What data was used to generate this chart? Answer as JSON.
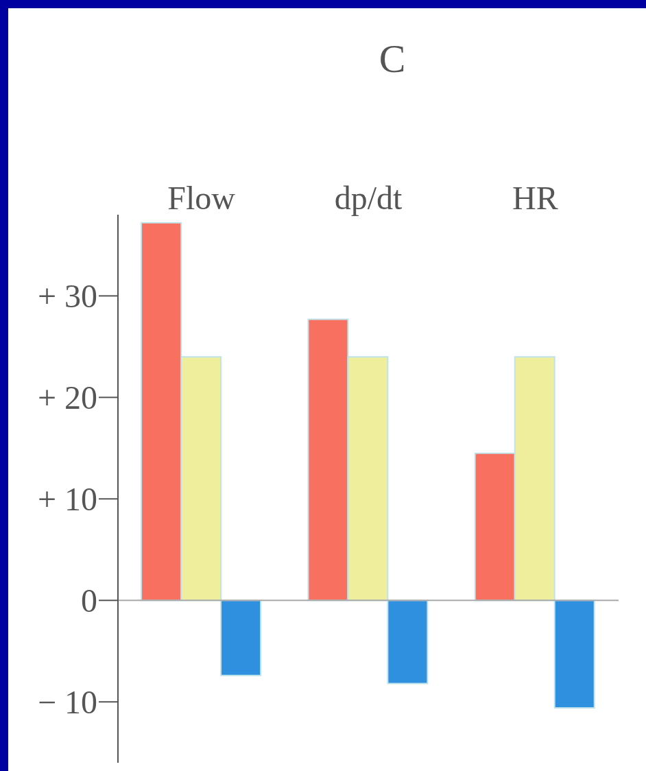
{
  "chart_data": {
    "type": "bar",
    "title": "C",
    "categories": [
      "Flow",
      "dp/dt",
      "HR"
    ],
    "series": [
      {
        "color": "#f87060",
        "values": [
          37.2,
          27.7,
          14.5
        ]
      },
      {
        "color": "#eeee9c",
        "values": [
          24,
          24,
          24
        ]
      },
      {
        "color": "#3090e0",
        "values": [
          -7.4,
          -8.2,
          -10.6
        ]
      }
    ],
    "ylim": [
      -16,
      38
    ],
    "yticks": [
      {
        "value": 30,
        "label": "+ 30"
      },
      {
        "value": 20,
        "label": "+ 20"
      },
      {
        "value": 10,
        "label": "+ 10"
      },
      {
        "value": 0,
        "label": "0"
      },
      {
        "value": -10,
        "label": "− 10"
      }
    ],
    "ref_lines": [
      {
        "axis": "y",
        "value": 0,
        "color": "#aaaaaa"
      }
    ]
  }
}
